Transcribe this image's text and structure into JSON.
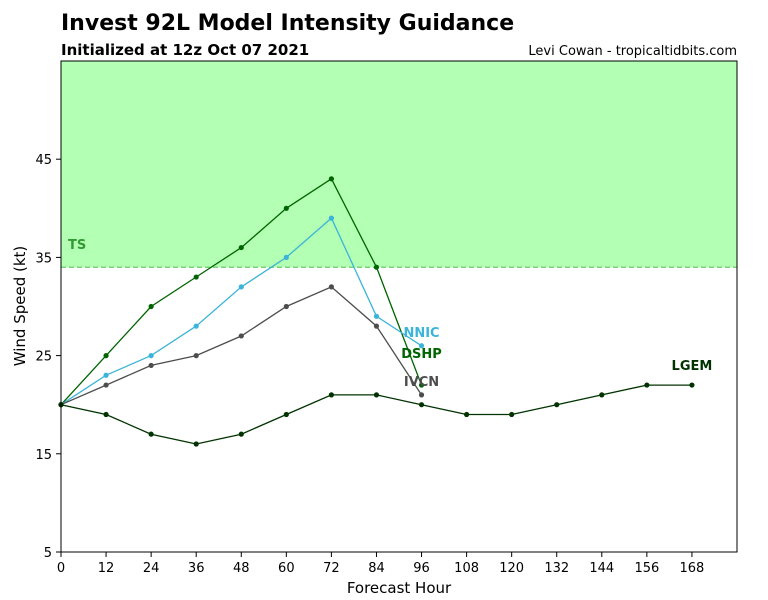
{
  "header": {
    "title": "Invest 92L Model Intensity Guidance",
    "subtitle": "Initialized at 12z Oct 07 2021",
    "credit": "Levi Cowan - tropicaltidbits.com"
  },
  "chart_data": {
    "type": "line",
    "xlabel": "Forecast Hour",
    "ylabel": "Wind Speed (kt)",
    "xlim": [
      0,
      180
    ],
    "ylim": [
      5,
      55
    ],
    "xticks": [
      0,
      12,
      24,
      36,
      48,
      60,
      72,
      84,
      96,
      108,
      120,
      132,
      144,
      156,
      168
    ],
    "yticks": [
      5,
      15,
      25,
      35,
      45
    ],
    "grid": false,
    "threshold": {
      "label": "TS",
      "value": 34,
      "fill_color": "#b3ffb3",
      "line_color": "#66cc66",
      "label_color": "#339933"
    },
    "series": [
      {
        "name": "DSHP",
        "color": "#006400",
        "label_color": "#006400",
        "x": [
          0,
          12,
          24,
          36,
          48,
          60,
          72,
          84,
          96
        ],
        "values": [
          20,
          25,
          30,
          33,
          36,
          40,
          43,
          34,
          22
        ]
      },
      {
        "name": "NNIC",
        "color": "#3cb4d8",
        "label_color": "#3cb4d8",
        "x": [
          0,
          12,
          24,
          36,
          48,
          60,
          72,
          84,
          96
        ],
        "values": [
          20,
          23,
          25,
          28,
          32,
          35,
          39,
          29,
          26
        ]
      },
      {
        "name": "IVCN",
        "color": "#4d4d4d",
        "label_color": "#4d4d4d",
        "x": [
          0,
          12,
          24,
          36,
          48,
          60,
          72,
          84,
          96
        ],
        "values": [
          20,
          22,
          24,
          25,
          27,
          30,
          32,
          28,
          21
        ]
      },
      {
        "name": "LGEM",
        "color": "#003300",
        "label_color": "#003300",
        "x": [
          0,
          12,
          24,
          36,
          48,
          60,
          72,
          84,
          96,
          108,
          120,
          132,
          144,
          156,
          168
        ],
        "values": [
          20,
          19,
          17,
          16,
          17,
          19,
          21,
          21,
          20,
          19,
          19,
          20,
          21,
          22,
          22
        ]
      }
    ]
  }
}
